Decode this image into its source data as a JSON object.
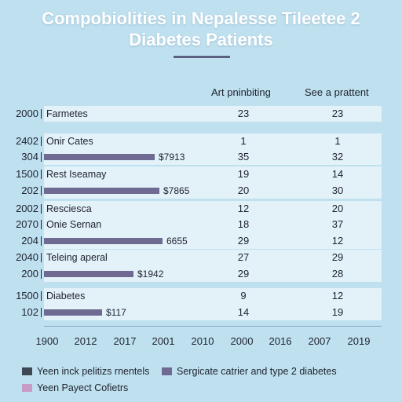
{
  "chart_data": {
    "type": "table",
    "title_line1": "Compobiolities in Nepalesse Tileetee 2",
    "title_line2": "Diabetes Patients",
    "columns": [
      "Art pninbiting",
      "See a prattent"
    ],
    "rows": [
      {
        "year": "2000",
        "label": "Farmetes",
        "bar": null,
        "bar_label": "",
        "col1": "23",
        "col2": "23"
      },
      {
        "year": "2402",
        "label": "Onir Cates",
        "bar": null,
        "bar_label": "",
        "col1": "1",
        "col2": "1"
      },
      {
        "year": "304",
        "label": "",
        "bar": 0.328,
        "bar_label": "$7913",
        "col1": "35",
        "col2": "32"
      },
      {
        "year": "1500",
        "label": "Rest Iseamay",
        "bar": null,
        "bar_label": "",
        "col1": "19",
        "col2": "14"
      },
      {
        "year": "202",
        "label": "",
        "bar": 0.342,
        "bar_label": "$7865",
        "col1": "20",
        "col2": "30"
      },
      {
        "year": "2002",
        "label": "Resciesca",
        "bar": null,
        "bar_label": "",
        "col1": "12",
        "col2": "20"
      },
      {
        "year": "2070",
        "label": "Onie Sernan",
        "bar": null,
        "bar_label": "",
        "col1": "18",
        "col2": "37"
      },
      {
        "year": "204",
        "label": "",
        "bar": 0.35,
        "bar_label": "6655",
        "col1": "29",
        "col2": "12"
      },
      {
        "year": "2040",
        "label": "Teleing aperal",
        "bar": null,
        "bar_label": "",
        "col1": "27",
        "col2": "29"
      },
      {
        "year": "200",
        "label": "",
        "bar": 0.266,
        "bar_label": "$1942",
        "col1": "29",
        "col2": "28"
      },
      {
        "year": "1500",
        "label": "Diabetes",
        "bar": null,
        "bar_label": "",
        "col1": "9",
        "col2": "12"
      },
      {
        "year": "102",
        "label": "",
        "bar": 0.172,
        "bar_label": "$117",
        "col1": "14",
        "col2": "19"
      }
    ],
    "x_ticks": [
      "1900",
      "2012",
      "2017",
      "2001",
      "2010",
      "2000",
      "2016",
      "2007",
      "2019"
    ],
    "legend": [
      {
        "label": "Yeen inck pelitizs rnentels",
        "color": "#3d4a55"
      },
      {
        "label": "Sergicate catrier and type 2 diabetes",
        "color": "#6e6a92"
      },
      {
        "label": "Yeen Payect Cofietrs",
        "color": "#c89ac6"
      }
    ],
    "colors": {
      "background": "#bfe0ef",
      "band": "#e3f1f9",
      "bar": "#6e6a92",
      "title": "#ffffff",
      "title_rule": "#5b5f80"
    }
  }
}
